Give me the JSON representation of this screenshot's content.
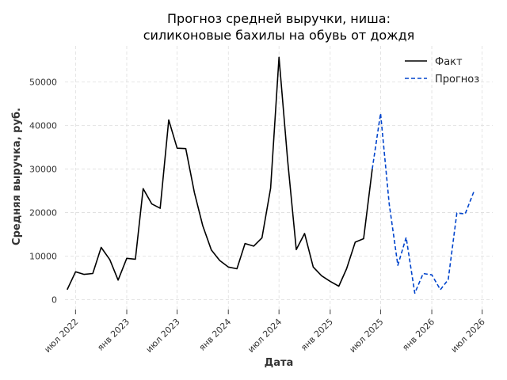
{
  "chart_data": {
    "type": "line",
    "title_lines": [
      "Прогноз средней выручки, ниша:",
      "силиконовые бахилы на обувь от дождя"
    ],
    "xlabel": "Дата",
    "ylabel": "Средняя выручка, руб.",
    "grid": true,
    "legend_position": "top-right",
    "x_ticks": [
      {
        "date": "2022-07-01",
        "label": "июл 2022"
      },
      {
        "date": "2023-01-01",
        "label": "янв 2023"
      },
      {
        "date": "2023-07-01",
        "label": "июл 2023"
      },
      {
        "date": "2024-01-01",
        "label": "янв 2024"
      },
      {
        "date": "2024-07-01",
        "label": "июл 2024"
      },
      {
        "date": "2025-01-01",
        "label": "янв 2025"
      },
      {
        "date": "2025-07-01",
        "label": "июл 2025"
      },
      {
        "date": "2026-01-01",
        "label": "янв 2026"
      },
      {
        "date": "2026-07-01",
        "label": "июл 2026"
      }
    ],
    "y_ticks": [
      {
        "value": 0,
        "label": "0"
      },
      {
        "value": 10000,
        "label": "10000"
      },
      {
        "value": 20000,
        "label": "20000"
      },
      {
        "value": 30000,
        "label": "30000"
      },
      {
        "value": 40000,
        "label": "40000"
      },
      {
        "value": 50000,
        "label": "50000"
      }
    ],
    "x_range": [
      "2022-05-24",
      "2026-08-08"
    ],
    "y_range": [
      -3000,
      58300
    ],
    "series": [
      {
        "name": "Факт",
        "color": "#000000",
        "dash": "solid",
        "points": [
          {
            "x": "2022-06-01",
            "y": 2300
          },
          {
            "x": "2022-07-01",
            "y": 6400
          },
          {
            "x": "2022-08-01",
            "y": 5800
          },
          {
            "x": "2022-09-01",
            "y": 6000
          },
          {
            "x": "2022-10-01",
            "y": 12000
          },
          {
            "x": "2022-11-01",
            "y": 9200
          },
          {
            "x": "2022-12-01",
            "y": 4500
          },
          {
            "x": "2023-01-01",
            "y": 9500
          },
          {
            "x": "2023-02-01",
            "y": 9300
          },
          {
            "x": "2023-03-01",
            "y": 25500
          },
          {
            "x": "2023-04-01",
            "y": 22000
          },
          {
            "x": "2023-05-01",
            "y": 21000
          },
          {
            "x": "2023-06-01",
            "y": 41300
          },
          {
            "x": "2023-07-01",
            "y": 34800
          },
          {
            "x": "2023-08-01",
            "y": 34700
          },
          {
            "x": "2023-09-01",
            "y": 24600
          },
          {
            "x": "2023-10-01",
            "y": 17000
          },
          {
            "x": "2023-11-01",
            "y": 11400
          },
          {
            "x": "2023-12-01",
            "y": 9000
          },
          {
            "x": "2024-01-01",
            "y": 7500
          },
          {
            "x": "2024-02-01",
            "y": 7100
          },
          {
            "x": "2024-03-01",
            "y": 12900
          },
          {
            "x": "2024-04-01",
            "y": 12300
          },
          {
            "x": "2024-05-01",
            "y": 14200
          },
          {
            "x": "2024-06-01",
            "y": 25600
          },
          {
            "x": "2024-07-01",
            "y": 55700
          },
          {
            "x": "2024-08-01",
            "y": 32000
          },
          {
            "x": "2024-09-01",
            "y": 11500
          },
          {
            "x": "2024-10-01",
            "y": 15200
          },
          {
            "x": "2024-11-01",
            "y": 7500
          },
          {
            "x": "2024-12-01",
            "y": 5500
          },
          {
            "x": "2025-01-01",
            "y": 4200
          },
          {
            "x": "2025-02-01",
            "y": 3100
          },
          {
            "x": "2025-03-01",
            "y": 7100
          },
          {
            "x": "2025-04-01",
            "y": 13200
          },
          {
            "x": "2025-05-01",
            "y": 14000
          },
          {
            "x": "2025-06-01",
            "y": 30000
          }
        ]
      },
      {
        "name": "Прогноз",
        "color": "#0044cc",
        "dash": "dashed",
        "points": [
          {
            "x": "2025-06-01",
            "y": 30000
          },
          {
            "x": "2025-07-01",
            "y": 42800
          },
          {
            "x": "2025-08-01",
            "y": 22000
          },
          {
            "x": "2025-09-01",
            "y": 7900
          },
          {
            "x": "2025-10-01",
            "y": 14300
          },
          {
            "x": "2025-11-01",
            "y": 1500
          },
          {
            "x": "2025-12-01",
            "y": 6000
          },
          {
            "x": "2026-01-01",
            "y": 5700
          },
          {
            "x": "2026-02-01",
            "y": 2300
          },
          {
            "x": "2026-03-01",
            "y": 4600
          },
          {
            "x": "2026-04-01",
            "y": 19900
          },
          {
            "x": "2026-05-01",
            "y": 19700
          },
          {
            "x": "2026-06-01",
            "y": 24800
          }
        ]
      }
    ]
  }
}
